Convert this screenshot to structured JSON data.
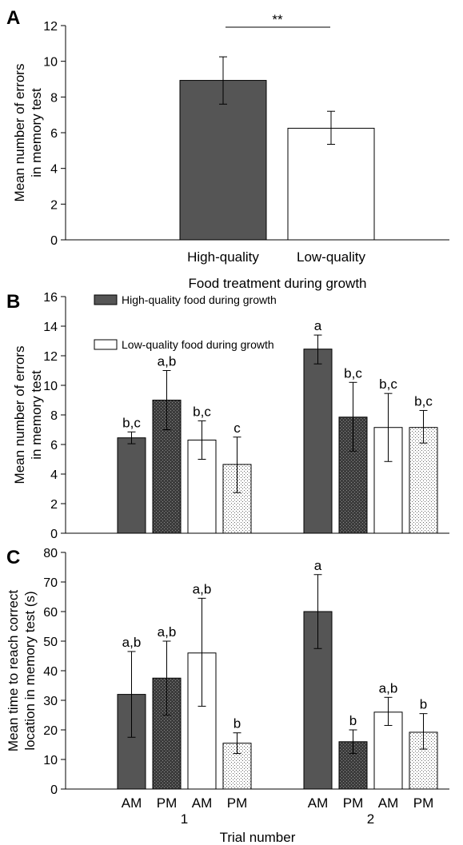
{
  "chart_data": [
    {
      "panel": "A",
      "type": "bar",
      "categories": [
        "High-quality",
        "Low-quality"
      ],
      "values": [
        8.93,
        6.25
      ],
      "errors": [
        {
          "low": 7.6,
          "high": 10.25
        },
        {
          "low": 5.35,
          "high": 7.2
        }
      ],
      "fills": [
        "dark",
        "white"
      ],
      "xlabel": "Food treatment during growth",
      "ylabel_lines": [
        "Mean number of errors",
        "in memory test"
      ],
      "ylim": [
        0,
        12
      ],
      "yticks": [
        0,
        2,
        4,
        6,
        8,
        10,
        12
      ],
      "significance": "**",
      "grid": false
    },
    {
      "panel": "B",
      "type": "bar",
      "groups": [
        "1",
        "2"
      ],
      "categories": [
        "AM",
        "PM",
        "AM",
        "PM"
      ],
      "fills": [
        "dark",
        "dark-dots",
        "white",
        "white-dots"
      ],
      "series": [
        {
          "group": "1",
          "values": [
            6.45,
            9.0,
            6.3,
            4.65
          ],
          "errors": [
            [
              6.05,
              6.85
            ],
            [
              7.0,
              11.0
            ],
            [
              5.0,
              7.6
            ],
            [
              2.75,
              6.5
            ]
          ],
          "labels": [
            "b,c",
            "a,b",
            "b,c",
            "c"
          ]
        },
        {
          "group": "2",
          "values": [
            12.45,
            7.85,
            7.15,
            7.15
          ],
          "errors": [
            [
              11.45,
              13.4
            ],
            [
              5.55,
              10.2
            ],
            [
              4.85,
              9.45
            ],
            [
              6.1,
              8.3
            ]
          ],
          "labels": [
            "a",
            "b,c",
            "b,c",
            "b,c"
          ]
        }
      ],
      "legend": [
        "High-quality food during growth",
        "Low-quality food during growth"
      ],
      "legend_position": "top-left",
      "ylabel_lines": [
        "Mean number of errors",
        "in memory test"
      ],
      "ylim": [
        0,
        16
      ],
      "yticks": [
        0,
        2,
        4,
        6,
        8,
        10,
        12,
        14,
        16
      ],
      "grid": false
    },
    {
      "panel": "C",
      "type": "bar",
      "groups": [
        "1",
        "2"
      ],
      "categories": [
        "AM",
        "PM",
        "AM",
        "PM"
      ],
      "fills": [
        "dark",
        "dark-dots",
        "white",
        "white-dots"
      ],
      "series": [
        {
          "group": "1",
          "values": [
            32,
            37.5,
            46,
            15.5
          ],
          "errors": [
            [
              17.5,
              46.5
            ],
            [
              25,
              50
            ],
            [
              28,
              64.5
            ],
            [
              12,
              19
            ]
          ],
          "labels": [
            "a,b",
            "a,b",
            "a,b",
            "b"
          ]
        },
        {
          "group": "2",
          "values": [
            60,
            16,
            26,
            19.2
          ],
          "errors": [
            [
              47.5,
              72.5
            ],
            [
              12,
              20
            ],
            [
              21.5,
              31
            ],
            [
              13.5,
              25.5
            ]
          ],
          "labels": [
            "a",
            "b",
            "a,b",
            "b"
          ]
        }
      ],
      "xlabel": "Trial number",
      "ylabel_lines": [
        "Mean time to reach correct",
        "location in memory test (s)"
      ],
      "ylim": [
        0,
        80
      ],
      "yticks": [
        0,
        10,
        20,
        30,
        40,
        50,
        60,
        70,
        80
      ],
      "grid": false
    }
  ],
  "colors": {
    "dark": "#555555",
    "outline": "#000000",
    "white": "#ffffff"
  }
}
